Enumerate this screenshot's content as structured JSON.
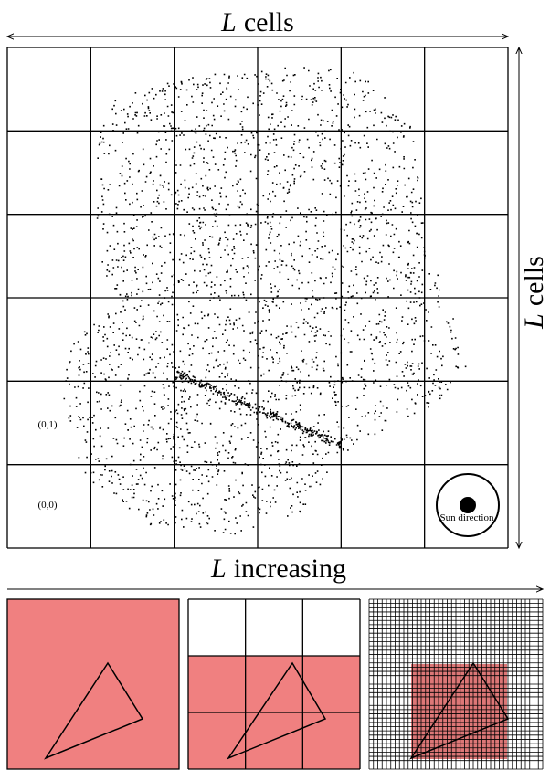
{
  "top_label": {
    "variable": "L",
    "text": "cells"
  },
  "side_label": {
    "variable": "L",
    "text": "cells"
  },
  "cell_labels": [
    "(0,1)",
    "(0,0)"
  ],
  "sun_label": "Sun direction",
  "bottom_label": {
    "variable": "L",
    "text": "increasing"
  }
}
